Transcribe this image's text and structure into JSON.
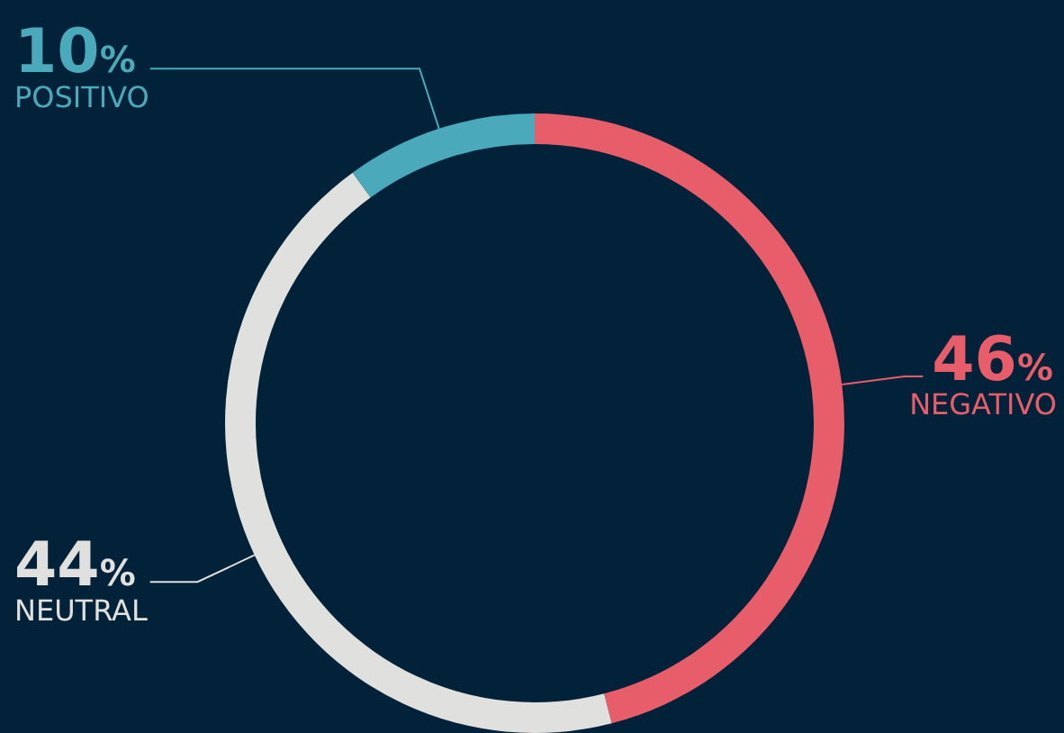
{
  "chart_data": {
    "type": "donut",
    "categories": [
      "NEGATIVO",
      "NEUTRAL",
      "POSITIVO"
    ],
    "values": [
      46,
      44,
      10
    ],
    "colors": [
      "#e85d6a",
      "#e0e0de",
      "#4aaabb"
    ],
    "value_labels": [
      "46%",
      "44%",
      "10%"
    ],
    "legend": false
  }
}
